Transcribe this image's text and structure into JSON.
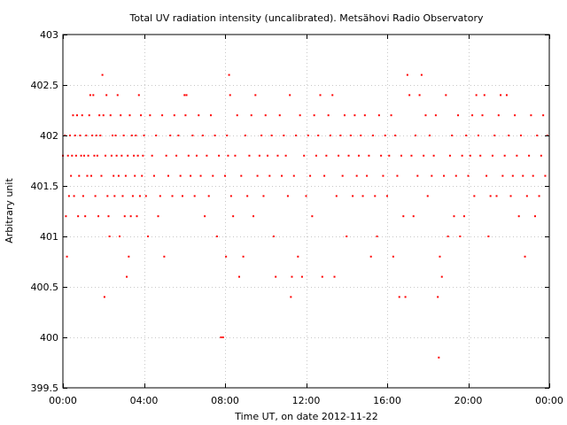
{
  "chart_data": {
    "type": "scatter",
    "title": "Total UV radiation intensity (uncalibrated). Metsähovi Radio Observatory",
    "xlabel": "Time UT, on date 2012-11-22",
    "ylabel": "Arbitrary unit",
    "xlim": [
      0,
      24
    ],
    "ylim": [
      399.5,
      403
    ],
    "x_tick_values": [
      0,
      4,
      8,
      12,
      16,
      20,
      24
    ],
    "x_tick_labels": [
      "00:00",
      "04:00",
      "08:00",
      "12:00",
      "16:00",
      "20:00",
      "00:00"
    ],
    "y_tick_values": [
      399.5,
      400,
      400.5,
      401,
      401.5,
      402,
      402.5,
      403
    ],
    "y_tick_labels": [
      "399.5",
      "400",
      "400.5",
      "401",
      "401.5",
      "402",
      "402.5",
      "403"
    ],
    "grid": true,
    "marker_color": "#ff0000",
    "series": [
      {
        "name": "",
        "points": [
          [
            0.0,
            401.8
          ],
          [
            0.1,
            402.0
          ],
          [
            0.15,
            401.2
          ],
          [
            0.2,
            400.8
          ],
          [
            0.25,
            401.8
          ],
          [
            0.3,
            401.4
          ],
          [
            0.35,
            402.0
          ],
          [
            0.4,
            401.6
          ],
          [
            0.45,
            401.8
          ],
          [
            0.5,
            402.2
          ],
          [
            0.55,
            401.4
          ],
          [
            0.6,
            402.0
          ],
          [
            0.65,
            401.8
          ],
          [
            0.7,
            402.2
          ],
          [
            0.75,
            401.2
          ],
          [
            0.8,
            401.6
          ],
          [
            0.85,
            402.0
          ],
          [
            0.9,
            401.8
          ],
          [
            0.95,
            402.2
          ],
          [
            1.0,
            401.4
          ],
          [
            1.05,
            401.8
          ],
          [
            1.1,
            401.2
          ],
          [
            1.15,
            402.0
          ],
          [
            1.2,
            401.6
          ],
          [
            1.25,
            401.8
          ],
          [
            1.3,
            402.2
          ],
          [
            1.35,
            402.4
          ],
          [
            1.4,
            401.6
          ],
          [
            1.45,
            402.0
          ],
          [
            1.5,
            402.4
          ],
          [
            1.55,
            401.8
          ],
          [
            1.6,
            401.4
          ],
          [
            1.65,
            402.0
          ],
          [
            1.7,
            401.8
          ],
          [
            1.75,
            401.2
          ],
          [
            1.8,
            402.2
          ],
          [
            1.85,
            402.0
          ],
          [
            1.9,
            401.6
          ],
          [
            1.95,
            402.6
          ],
          [
            2.0,
            402.2
          ],
          [
            2.05,
            400.4
          ],
          [
            2.1,
            401.8
          ],
          [
            2.15,
            402.4
          ],
          [
            2.2,
            401.4
          ],
          [
            2.25,
            401.2
          ],
          [
            2.3,
            401.0
          ],
          [
            2.35,
            402.2
          ],
          [
            2.4,
            401.8
          ],
          [
            2.45,
            402.0
          ],
          [
            2.5,
            401.6
          ],
          [
            2.55,
            401.4
          ],
          [
            2.6,
            402.0
          ],
          [
            2.65,
            401.8
          ],
          [
            2.7,
            402.4
          ],
          [
            2.75,
            401.6
          ],
          [
            2.8,
            401.0
          ],
          [
            2.85,
            402.2
          ],
          [
            2.9,
            401.8
          ],
          [
            2.95,
            401.4
          ],
          [
            3.0,
            402.0
          ],
          [
            3.05,
            401.2
          ],
          [
            3.1,
            401.6
          ],
          [
            3.15,
            400.6
          ],
          [
            3.2,
            401.8
          ],
          [
            3.25,
            400.8
          ],
          [
            3.3,
            402.2
          ],
          [
            3.35,
            401.2
          ],
          [
            3.4,
            402.0
          ],
          [
            3.45,
            401.4
          ],
          [
            3.5,
            401.8
          ],
          [
            3.55,
            401.6
          ],
          [
            3.6,
            402.0
          ],
          [
            3.65,
            401.2
          ],
          [
            3.7,
            401.8
          ],
          [
            3.75,
            402.4
          ],
          [
            3.8,
            401.4
          ],
          [
            3.85,
            402.2
          ],
          [
            3.9,
            401.6
          ],
          [
            3.95,
            401.8
          ],
          [
            4.0,
            402.0
          ],
          [
            4.1,
            401.4
          ],
          [
            4.2,
            401.0
          ],
          [
            4.3,
            402.2
          ],
          [
            4.4,
            401.8
          ],
          [
            4.5,
            401.6
          ],
          [
            4.6,
            402.0
          ],
          [
            4.7,
            401.2
          ],
          [
            4.8,
            401.4
          ],
          [
            4.9,
            402.2
          ],
          [
            5.0,
            400.8
          ],
          [
            5.1,
            401.8
          ],
          [
            5.2,
            401.6
          ],
          [
            5.3,
            402.0
          ],
          [
            5.4,
            401.4
          ],
          [
            5.5,
            402.2
          ],
          [
            5.6,
            401.8
          ],
          [
            5.7,
            402.0
          ],
          [
            5.8,
            401.6
          ],
          [
            5.9,
            401.4
          ],
          [
            6.0,
            402.4
          ],
          [
            6.05,
            402.2
          ],
          [
            6.1,
            402.4
          ],
          [
            6.2,
            401.8
          ],
          [
            6.3,
            401.6
          ],
          [
            6.4,
            402.0
          ],
          [
            6.5,
            401.4
          ],
          [
            6.6,
            401.8
          ],
          [
            6.7,
            402.2
          ],
          [
            6.8,
            401.6
          ],
          [
            6.9,
            402.0
          ],
          [
            7.0,
            401.2
          ],
          [
            7.1,
            401.8
          ],
          [
            7.2,
            401.4
          ],
          [
            7.3,
            402.2
          ],
          [
            7.4,
            401.6
          ],
          [
            7.5,
            402.0
          ],
          [
            7.6,
            401.0
          ],
          [
            7.7,
            401.8
          ],
          [
            7.8,
            400.0
          ],
          [
            7.9,
            400.0
          ],
          [
            8.0,
            401.6
          ],
          [
            8.05,
            400.8
          ],
          [
            8.1,
            402.0
          ],
          [
            8.15,
            401.8
          ],
          [
            8.2,
            402.6
          ],
          [
            8.25,
            402.4
          ],
          [
            8.3,
            401.4
          ],
          [
            8.4,
            401.2
          ],
          [
            8.5,
            401.8
          ],
          [
            8.6,
            402.2
          ],
          [
            8.7,
            400.6
          ],
          [
            8.8,
            401.6
          ],
          [
            8.9,
            400.8
          ],
          [
            9.0,
            402.0
          ],
          [
            9.1,
            401.4
          ],
          [
            9.2,
            401.8
          ],
          [
            9.3,
            402.2
          ],
          [
            9.4,
            401.2
          ],
          [
            9.5,
            402.4
          ],
          [
            9.6,
            401.6
          ],
          [
            9.7,
            401.8
          ],
          [
            9.8,
            402.0
          ],
          [
            9.9,
            401.4
          ],
          [
            10.0,
            402.2
          ],
          [
            10.1,
            401.8
          ],
          [
            10.2,
            401.6
          ],
          [
            10.3,
            402.0
          ],
          [
            10.4,
            401.0
          ],
          [
            10.5,
            400.6
          ],
          [
            10.6,
            401.8
          ],
          [
            10.7,
            402.2
          ],
          [
            10.8,
            401.6
          ],
          [
            10.9,
            402.0
          ],
          [
            11.0,
            401.8
          ],
          [
            11.1,
            401.4
          ],
          [
            11.2,
            402.4
          ],
          [
            11.25,
            400.4
          ],
          [
            11.3,
            400.6
          ],
          [
            11.4,
            401.6
          ],
          [
            11.5,
            402.0
          ],
          [
            11.6,
            400.8
          ],
          [
            11.7,
            402.2
          ],
          [
            11.8,
            400.6
          ],
          [
            11.9,
            401.8
          ],
          [
            12.0,
            401.4
          ],
          [
            12.1,
            402.0
          ],
          [
            12.2,
            401.6
          ],
          [
            12.3,
            401.2
          ],
          [
            12.4,
            402.2
          ],
          [
            12.5,
            401.8
          ],
          [
            12.6,
            402.0
          ],
          [
            12.7,
            402.4
          ],
          [
            12.8,
            400.6
          ],
          [
            12.9,
            401.6
          ],
          [
            13.0,
            401.8
          ],
          [
            13.1,
            402.2
          ],
          [
            13.2,
            402.0
          ],
          [
            13.3,
            402.4
          ],
          [
            13.4,
            400.6
          ],
          [
            13.5,
            401.4
          ],
          [
            13.6,
            401.8
          ],
          [
            13.7,
            402.0
          ],
          [
            13.8,
            401.6
          ],
          [
            13.9,
            402.2
          ],
          [
            14.0,
            401.0
          ],
          [
            14.1,
            401.8
          ],
          [
            14.2,
            402.0
          ],
          [
            14.3,
            401.4
          ],
          [
            14.4,
            402.2
          ],
          [
            14.5,
            401.6
          ],
          [
            14.6,
            401.8
          ],
          [
            14.7,
            402.0
          ],
          [
            14.8,
            401.4
          ],
          [
            14.9,
            402.2
          ],
          [
            15.0,
            401.6
          ],
          [
            15.1,
            401.8
          ],
          [
            15.2,
            400.8
          ],
          [
            15.3,
            402.0
          ],
          [
            15.4,
            401.4
          ],
          [
            15.5,
            401.0
          ],
          [
            15.6,
            402.2
          ],
          [
            15.7,
            401.8
          ],
          [
            15.8,
            401.6
          ],
          [
            15.9,
            402.0
          ],
          [
            16.0,
            401.4
          ],
          [
            16.1,
            401.8
          ],
          [
            16.2,
            402.2
          ],
          [
            16.3,
            400.8
          ],
          [
            16.4,
            402.0
          ],
          [
            16.5,
            401.6
          ],
          [
            16.6,
            400.4
          ],
          [
            16.7,
            401.8
          ],
          [
            16.8,
            401.2
          ],
          [
            16.9,
            400.4
          ],
          [
            17.0,
            402.6
          ],
          [
            17.1,
            402.4
          ],
          [
            17.2,
            401.8
          ],
          [
            17.3,
            401.2
          ],
          [
            17.4,
            402.0
          ],
          [
            17.5,
            401.6
          ],
          [
            17.6,
            402.4
          ],
          [
            17.7,
            402.6
          ],
          [
            17.8,
            401.8
          ],
          [
            17.9,
            402.2
          ],
          [
            18.0,
            401.4
          ],
          [
            18.1,
            402.0
          ],
          [
            18.2,
            401.6
          ],
          [
            18.3,
            401.8
          ],
          [
            18.4,
            402.2
          ],
          [
            18.5,
            400.4
          ],
          [
            18.55,
            399.8
          ],
          [
            18.6,
            400.8
          ],
          [
            18.7,
            400.6
          ],
          [
            18.8,
            401.6
          ],
          [
            18.9,
            402.4
          ],
          [
            19.0,
            401.0
          ],
          [
            19.1,
            401.8
          ],
          [
            19.2,
            402.0
          ],
          [
            19.3,
            401.2
          ],
          [
            19.4,
            401.6
          ],
          [
            19.5,
            402.2
          ],
          [
            19.6,
            401.0
          ],
          [
            19.7,
            401.8
          ],
          [
            19.8,
            401.2
          ],
          [
            19.9,
            402.0
          ],
          [
            20.0,
            401.6
          ],
          [
            20.1,
            401.8
          ],
          [
            20.2,
            402.2
          ],
          [
            20.3,
            401.4
          ],
          [
            20.4,
            402.4
          ],
          [
            20.5,
            402.0
          ],
          [
            20.6,
            401.8
          ],
          [
            20.7,
            402.2
          ],
          [
            20.8,
            402.4
          ],
          [
            20.9,
            401.6
          ],
          [
            21.0,
            401.0
          ],
          [
            21.1,
            401.4
          ],
          [
            21.2,
            401.8
          ],
          [
            21.3,
            402.0
          ],
          [
            21.4,
            401.4
          ],
          [
            21.5,
            402.2
          ],
          [
            21.6,
            402.4
          ],
          [
            21.7,
            401.6
          ],
          [
            21.8,
            401.8
          ],
          [
            21.9,
            402.4
          ],
          [
            22.0,
            402.0
          ],
          [
            22.1,
            401.4
          ],
          [
            22.2,
            401.6
          ],
          [
            22.3,
            402.2
          ],
          [
            22.4,
            401.8
          ],
          [
            22.5,
            401.2
          ],
          [
            22.6,
            402.0
          ],
          [
            22.7,
            401.6
          ],
          [
            22.8,
            400.8
          ],
          [
            22.9,
            401.4
          ],
          [
            23.0,
            401.8
          ],
          [
            23.1,
            402.2
          ],
          [
            23.2,
            401.6
          ],
          [
            23.3,
            401.2
          ],
          [
            23.4,
            402.0
          ],
          [
            23.5,
            401.4
          ],
          [
            23.6,
            401.8
          ],
          [
            23.7,
            402.2
          ],
          [
            23.8,
            401.6
          ],
          [
            23.9,
            402.0
          ]
        ]
      }
    ]
  }
}
